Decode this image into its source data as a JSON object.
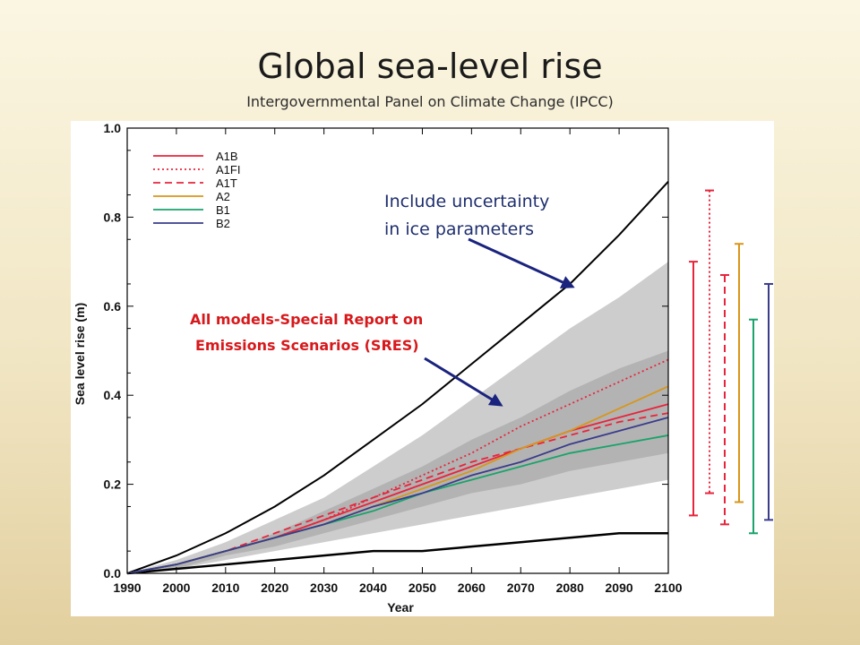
{
  "slide": {
    "title": "Global sea-level rise",
    "subtitle": "Intergovernmental Panel on Climate Change (IPCC)"
  },
  "annotations": {
    "ice_line1": "Include uncertainty",
    "ice_line2": "in ice parameters",
    "sres_line1": "All models-Special Report on",
    "sres_line2": "Emissions Scenarios (SRES)"
  },
  "colors": {
    "A1B": "#e8243c",
    "A1FI": "#e8243c",
    "A1T": "#e8243c",
    "A2": "#d8961a",
    "B1": "#1aa36b",
    "B2": "#3a3c8c",
    "envelope": "#cdcdcd",
    "arrow": "#1a237e"
  },
  "chart_data": {
    "type": "line",
    "xlabel": "Year",
    "ylabel": "Sea level rise (m)",
    "xlim": [
      1990,
      2100
    ],
    "ylim": [
      0,
      1.0
    ],
    "xticks": [
      "1990",
      "2000",
      "2010",
      "2020",
      "2030",
      "2040",
      "2050",
      "2060",
      "2070",
      "2080",
      "2090",
      "2100"
    ],
    "yticks": [
      "0.0",
      "0.2",
      "0.4",
      "0.6",
      "0.8",
      "1.0"
    ],
    "legend_position": "top-left",
    "x": [
      1990,
      2000,
      2010,
      2020,
      2030,
      2040,
      2050,
      2060,
      2070,
      2080,
      2090,
      2100
    ],
    "series": [
      {
        "name": "A1B",
        "style": "solid",
        "values": [
          0,
          0.02,
          0.05,
          0.08,
          0.12,
          0.16,
          0.2,
          0.24,
          0.28,
          0.32,
          0.35,
          0.38
        ]
      },
      {
        "name": "A1FI",
        "style": "dotted",
        "values": [
          0,
          0.02,
          0.05,
          0.08,
          0.12,
          0.17,
          0.22,
          0.27,
          0.33,
          0.38,
          0.43,
          0.48
        ]
      },
      {
        "name": "A1T",
        "style": "dashed",
        "values": [
          0,
          0.02,
          0.05,
          0.09,
          0.13,
          0.17,
          0.21,
          0.25,
          0.28,
          0.31,
          0.34,
          0.36
        ]
      },
      {
        "name": "A2",
        "style": "solid",
        "values": [
          0,
          0.02,
          0.05,
          0.08,
          0.11,
          0.15,
          0.19,
          0.23,
          0.28,
          0.32,
          0.37,
          0.42
        ]
      },
      {
        "name": "B1",
        "style": "solid",
        "values": [
          0,
          0.02,
          0.05,
          0.08,
          0.11,
          0.14,
          0.18,
          0.21,
          0.24,
          0.27,
          0.29,
          0.31
        ]
      },
      {
        "name": "B2",
        "style": "solid",
        "values": [
          0,
          0.02,
          0.05,
          0.08,
          0.11,
          0.15,
          0.18,
          0.22,
          0.25,
          0.29,
          0.32,
          0.35
        ]
      }
    ],
    "envelope_sres": {
      "upper": [
        0,
        0.03,
        0.07,
        0.12,
        0.17,
        0.24,
        0.31,
        0.39,
        0.47,
        0.55,
        0.62,
        0.7
      ],
      "lower": [
        0,
        0.01,
        0.03,
        0.05,
        0.07,
        0.09,
        0.11,
        0.13,
        0.15,
        0.17,
        0.19,
        0.21
      ]
    },
    "envelope_models": {
      "upper": [
        0,
        0.02,
        0.05,
        0.09,
        0.14,
        0.19,
        0.24,
        0.3,
        0.35,
        0.41,
        0.46,
        0.5
      ],
      "lower": [
        0,
        0.01,
        0.04,
        0.06,
        0.09,
        0.12,
        0.15,
        0.18,
        0.2,
        0.23,
        0.25,
        0.27
      ]
    },
    "ice_upper_bound": [
      0,
      0.04,
      0.09,
      0.15,
      0.22,
      0.3,
      0.38,
      0.47,
      0.56,
      0.65,
      0.76,
      0.88
    ],
    "ice_lower_bound": [
      0,
      0.01,
      0.02,
      0.03,
      0.04,
      0.05,
      0.05,
      0.06,
      0.07,
      0.08,
      0.09,
      0.09
    ],
    "range_bars": [
      {
        "scenario": "A1B",
        "style": "solid",
        "low": 0.13,
        "high": 0.7
      },
      {
        "scenario": "A1FI",
        "style": "dotted",
        "low": 0.18,
        "high": 0.86
      },
      {
        "scenario": "A1T",
        "style": "dashed",
        "low": 0.11,
        "high": 0.67
      },
      {
        "scenario": "A2",
        "style": "solid",
        "low": 0.16,
        "high": 0.74
      },
      {
        "scenario": "B1",
        "style": "solid",
        "low": 0.09,
        "high": 0.57
      },
      {
        "scenario": "B2",
        "style": "solid",
        "low": 0.12,
        "high": 0.65
      }
    ]
  }
}
